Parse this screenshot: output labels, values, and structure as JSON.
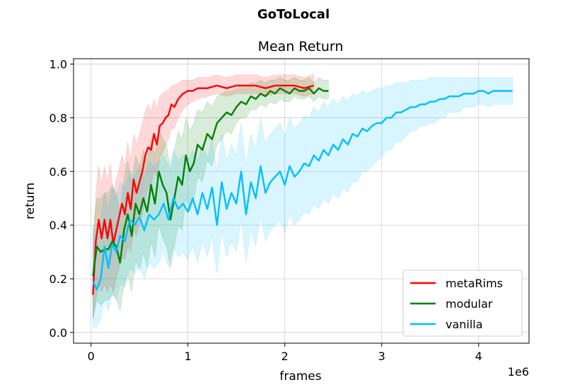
{
  "figure": {
    "suptitle": "GoToLocal"
  },
  "chart_data": {
    "type": "line",
    "title": "Mean Return",
    "xlabel": "frames",
    "ylabel": "return",
    "x_scale_label": "1e6",
    "xlim": [
      -0.18,
      4.52
    ],
    "ylim": [
      -0.04,
      1.02
    ],
    "xticks": [
      0,
      1,
      2,
      3,
      4
    ],
    "xtick_labels": [
      "0",
      "1",
      "2",
      "3",
      "4"
    ],
    "yticks": [
      0.0,
      0.2,
      0.4,
      0.6,
      0.8,
      1.0
    ],
    "ytick_labels": [
      "0.0",
      "0.2",
      "0.4",
      "0.6",
      "0.8",
      "1.0"
    ],
    "grid": true,
    "legend_position": "lower-right",
    "series": [
      {
        "name": "metaRims",
        "color": "#ff0000",
        "x": [
          0.02,
          0.05,
          0.08,
          0.11,
          0.14,
          0.17,
          0.2,
          0.23,
          0.26,
          0.29,
          0.32,
          0.35,
          0.38,
          0.41,
          0.44,
          0.47,
          0.5,
          0.53,
          0.56,
          0.59,
          0.62,
          0.65,
          0.68,
          0.71,
          0.74,
          0.77,
          0.8,
          0.83,
          0.86,
          0.9,
          0.95,
          1.0,
          1.05,
          1.1,
          1.2,
          1.3,
          1.4,
          1.5,
          1.6,
          1.7,
          1.8,
          1.9,
          2.0,
          2.1,
          2.2,
          2.3
        ],
        "y": [
          0.14,
          0.34,
          0.42,
          0.35,
          0.42,
          0.35,
          0.42,
          0.33,
          0.38,
          0.43,
          0.48,
          0.44,
          0.52,
          0.46,
          0.57,
          0.52,
          0.56,
          0.6,
          0.66,
          0.69,
          0.68,
          0.74,
          0.7,
          0.77,
          0.78,
          0.8,
          0.81,
          0.85,
          0.84,
          0.87,
          0.89,
          0.9,
          0.9,
          0.91,
          0.91,
          0.92,
          0.91,
          0.92,
          0.92,
          0.92,
          0.91,
          0.92,
          0.92,
          0.92,
          0.91,
          0.92
        ],
        "lower": [
          0.05,
          0.12,
          0.18,
          0.15,
          0.18,
          0.15,
          0.18,
          0.15,
          0.2,
          0.24,
          0.28,
          0.27,
          0.32,
          0.3,
          0.38,
          0.36,
          0.4,
          0.44,
          0.5,
          0.54,
          0.55,
          0.6,
          0.58,
          0.65,
          0.67,
          0.7,
          0.72,
          0.76,
          0.76,
          0.8,
          0.83,
          0.85,
          0.86,
          0.87,
          0.88,
          0.89,
          0.88,
          0.89,
          0.89,
          0.89,
          0.88,
          0.89,
          0.89,
          0.89,
          0.88,
          0.89
        ],
        "upper": [
          0.3,
          0.52,
          0.62,
          0.55,
          0.62,
          0.56,
          0.63,
          0.52,
          0.57,
          0.61,
          0.66,
          0.62,
          0.71,
          0.64,
          0.74,
          0.7,
          0.74,
          0.78,
          0.82,
          0.85,
          0.82,
          0.87,
          0.83,
          0.88,
          0.89,
          0.9,
          0.9,
          0.92,
          0.92,
          0.93,
          0.94,
          0.94,
          0.94,
          0.95,
          0.95,
          0.96,
          0.95,
          0.96,
          0.96,
          0.96,
          0.95,
          0.96,
          0.96,
          0.96,
          0.95,
          0.96
        ]
      },
      {
        "name": "modular",
        "color": "#008000",
        "x": [
          0.02,
          0.06,
          0.1,
          0.14,
          0.18,
          0.22,
          0.26,
          0.3,
          0.34,
          0.38,
          0.42,
          0.46,
          0.5,
          0.54,
          0.58,
          0.62,
          0.66,
          0.7,
          0.74,
          0.78,
          0.82,
          0.86,
          0.9,
          0.94,
          0.98,
          1.02,
          1.06,
          1.1,
          1.15,
          1.2,
          1.25,
          1.3,
          1.35,
          1.4,
          1.45,
          1.5,
          1.55,
          1.6,
          1.65,
          1.7,
          1.75,
          1.8,
          1.85,
          1.9,
          1.95,
          2.0,
          2.05,
          2.1,
          2.15,
          2.2,
          2.25,
          2.3,
          2.35,
          2.4,
          2.45
        ],
        "y": [
          0.21,
          0.32,
          0.3,
          0.31,
          0.31,
          0.34,
          0.32,
          0.26,
          0.38,
          0.44,
          0.36,
          0.48,
          0.44,
          0.5,
          0.45,
          0.55,
          0.48,
          0.6,
          0.55,
          0.52,
          0.42,
          0.5,
          0.58,
          0.55,
          0.66,
          0.6,
          0.63,
          0.7,
          0.68,
          0.74,
          0.72,
          0.78,
          0.8,
          0.82,
          0.81,
          0.84,
          0.86,
          0.85,
          0.88,
          0.87,
          0.89,
          0.88,
          0.9,
          0.89,
          0.91,
          0.9,
          0.89,
          0.91,
          0.9,
          0.9,
          0.91,
          0.89,
          0.91,
          0.9,
          0.9
        ],
        "lower": [
          0.05,
          0.12,
          0.1,
          0.12,
          0.12,
          0.14,
          0.13,
          0.08,
          0.17,
          0.22,
          0.15,
          0.27,
          0.23,
          0.3,
          0.24,
          0.34,
          0.28,
          0.4,
          0.35,
          0.32,
          0.24,
          0.32,
          0.4,
          0.38,
          0.5,
          0.45,
          0.49,
          0.58,
          0.56,
          0.64,
          0.62,
          0.7,
          0.72,
          0.75,
          0.74,
          0.78,
          0.8,
          0.8,
          0.83,
          0.83,
          0.85,
          0.84,
          0.86,
          0.85,
          0.87,
          0.86,
          0.86,
          0.88,
          0.87,
          0.87,
          0.88,
          0.86,
          0.88,
          0.87,
          0.87
        ],
        "upper": [
          0.36,
          0.5,
          0.5,
          0.52,
          0.52,
          0.55,
          0.52,
          0.45,
          0.58,
          0.64,
          0.56,
          0.66,
          0.62,
          0.68,
          0.64,
          0.72,
          0.66,
          0.76,
          0.72,
          0.7,
          0.6,
          0.68,
          0.75,
          0.72,
          0.8,
          0.75,
          0.78,
          0.83,
          0.82,
          0.86,
          0.84,
          0.88,
          0.89,
          0.9,
          0.9,
          0.91,
          0.92,
          0.92,
          0.93,
          0.93,
          0.94,
          0.93,
          0.94,
          0.94,
          0.95,
          0.94,
          0.94,
          0.95,
          0.94,
          0.94,
          0.95,
          0.93,
          0.95,
          0.94,
          0.94
        ]
      },
      {
        "name": "vanilla",
        "color": "#00bfff",
        "x": [
          0.02,
          0.06,
          0.1,
          0.14,
          0.18,
          0.22,
          0.26,
          0.3,
          0.35,
          0.4,
          0.45,
          0.5,
          0.55,
          0.6,
          0.65,
          0.7,
          0.75,
          0.8,
          0.85,
          0.9,
          0.95,
          1.0,
          1.05,
          1.1,
          1.15,
          1.2,
          1.25,
          1.3,
          1.35,
          1.4,
          1.45,
          1.5,
          1.55,
          1.6,
          1.65,
          1.7,
          1.75,
          1.8,
          1.85,
          1.9,
          1.95,
          2.0,
          2.05,
          2.1,
          2.15,
          2.2,
          2.25,
          2.3,
          2.35,
          2.4,
          2.45,
          2.5,
          2.55,
          2.6,
          2.65,
          2.7,
          2.75,
          2.8,
          2.85,
          2.9,
          2.95,
          3.0,
          3.05,
          3.1,
          3.15,
          3.2,
          3.25,
          3.3,
          3.35,
          3.4,
          3.45,
          3.5,
          3.55,
          3.6,
          3.65,
          3.7,
          3.75,
          3.8,
          3.85,
          3.9,
          3.95,
          4.0,
          4.05,
          4.1,
          4.15,
          4.2,
          4.25,
          4.3,
          4.35
        ],
        "y": [
          0.19,
          0.16,
          0.2,
          0.32,
          0.24,
          0.33,
          0.3,
          0.36,
          0.34,
          0.42,
          0.4,
          0.43,
          0.38,
          0.44,
          0.42,
          0.44,
          0.48,
          0.42,
          0.5,
          0.46,
          0.48,
          0.45,
          0.5,
          0.44,
          0.52,
          0.46,
          0.54,
          0.4,
          0.56,
          0.46,
          0.52,
          0.48,
          0.6,
          0.44,
          0.56,
          0.5,
          0.62,
          0.52,
          0.56,
          0.58,
          0.6,
          0.55,
          0.62,
          0.58,
          0.6,
          0.63,
          0.62,
          0.66,
          0.64,
          0.68,
          0.66,
          0.7,
          0.68,
          0.72,
          0.7,
          0.74,
          0.73,
          0.76,
          0.75,
          0.77,
          0.78,
          0.78,
          0.8,
          0.8,
          0.82,
          0.82,
          0.83,
          0.84,
          0.84,
          0.85,
          0.85,
          0.86,
          0.86,
          0.87,
          0.87,
          0.88,
          0.88,
          0.88,
          0.89,
          0.89,
          0.89,
          0.9,
          0.9,
          0.89,
          0.9,
          0.9,
          0.9,
          0.9,
          0.9
        ],
        "lower": [
          0.02,
          0.02,
          0.05,
          0.12,
          0.08,
          0.15,
          0.12,
          0.18,
          0.17,
          0.24,
          0.22,
          0.25,
          0.2,
          0.26,
          0.24,
          0.26,
          0.3,
          0.24,
          0.32,
          0.28,
          0.3,
          0.27,
          0.32,
          0.26,
          0.34,
          0.28,
          0.36,
          0.22,
          0.38,
          0.28,
          0.34,
          0.3,
          0.42,
          0.26,
          0.38,
          0.32,
          0.44,
          0.34,
          0.38,
          0.4,
          0.42,
          0.37,
          0.44,
          0.4,
          0.42,
          0.45,
          0.44,
          0.48,
          0.46,
          0.5,
          0.48,
          0.52,
          0.5,
          0.54,
          0.52,
          0.56,
          0.56,
          0.6,
          0.6,
          0.62,
          0.64,
          0.65,
          0.68,
          0.68,
          0.71,
          0.71,
          0.73,
          0.75,
          0.75,
          0.77,
          0.77,
          0.78,
          0.78,
          0.8,
          0.8,
          0.82,
          0.82,
          0.82,
          0.84,
          0.84,
          0.84,
          0.85,
          0.85,
          0.84,
          0.85,
          0.85,
          0.85,
          0.85,
          0.85
        ],
        "upper": [
          0.4,
          0.36,
          0.42,
          0.52,
          0.46,
          0.54,
          0.5,
          0.56,
          0.54,
          0.6,
          0.58,
          0.62,
          0.58,
          0.64,
          0.62,
          0.64,
          0.66,
          0.62,
          0.68,
          0.64,
          0.66,
          0.64,
          0.68,
          0.64,
          0.7,
          0.65,
          0.72,
          0.6,
          0.74,
          0.64,
          0.7,
          0.66,
          0.78,
          0.62,
          0.74,
          0.68,
          0.8,
          0.7,
          0.74,
          0.76,
          0.78,
          0.73,
          0.8,
          0.76,
          0.78,
          0.81,
          0.8,
          0.84,
          0.82,
          0.86,
          0.84,
          0.87,
          0.85,
          0.88,
          0.86,
          0.89,
          0.88,
          0.9,
          0.89,
          0.9,
          0.91,
          0.91,
          0.92,
          0.92,
          0.93,
          0.93,
          0.93,
          0.94,
          0.94,
          0.94,
          0.94,
          0.95,
          0.95,
          0.95,
          0.95,
          0.95,
          0.95,
          0.95,
          0.95,
          0.95,
          0.95,
          0.95,
          0.95,
          0.95,
          0.95,
          0.95,
          0.95,
          0.95,
          0.95
        ]
      }
    ]
  }
}
